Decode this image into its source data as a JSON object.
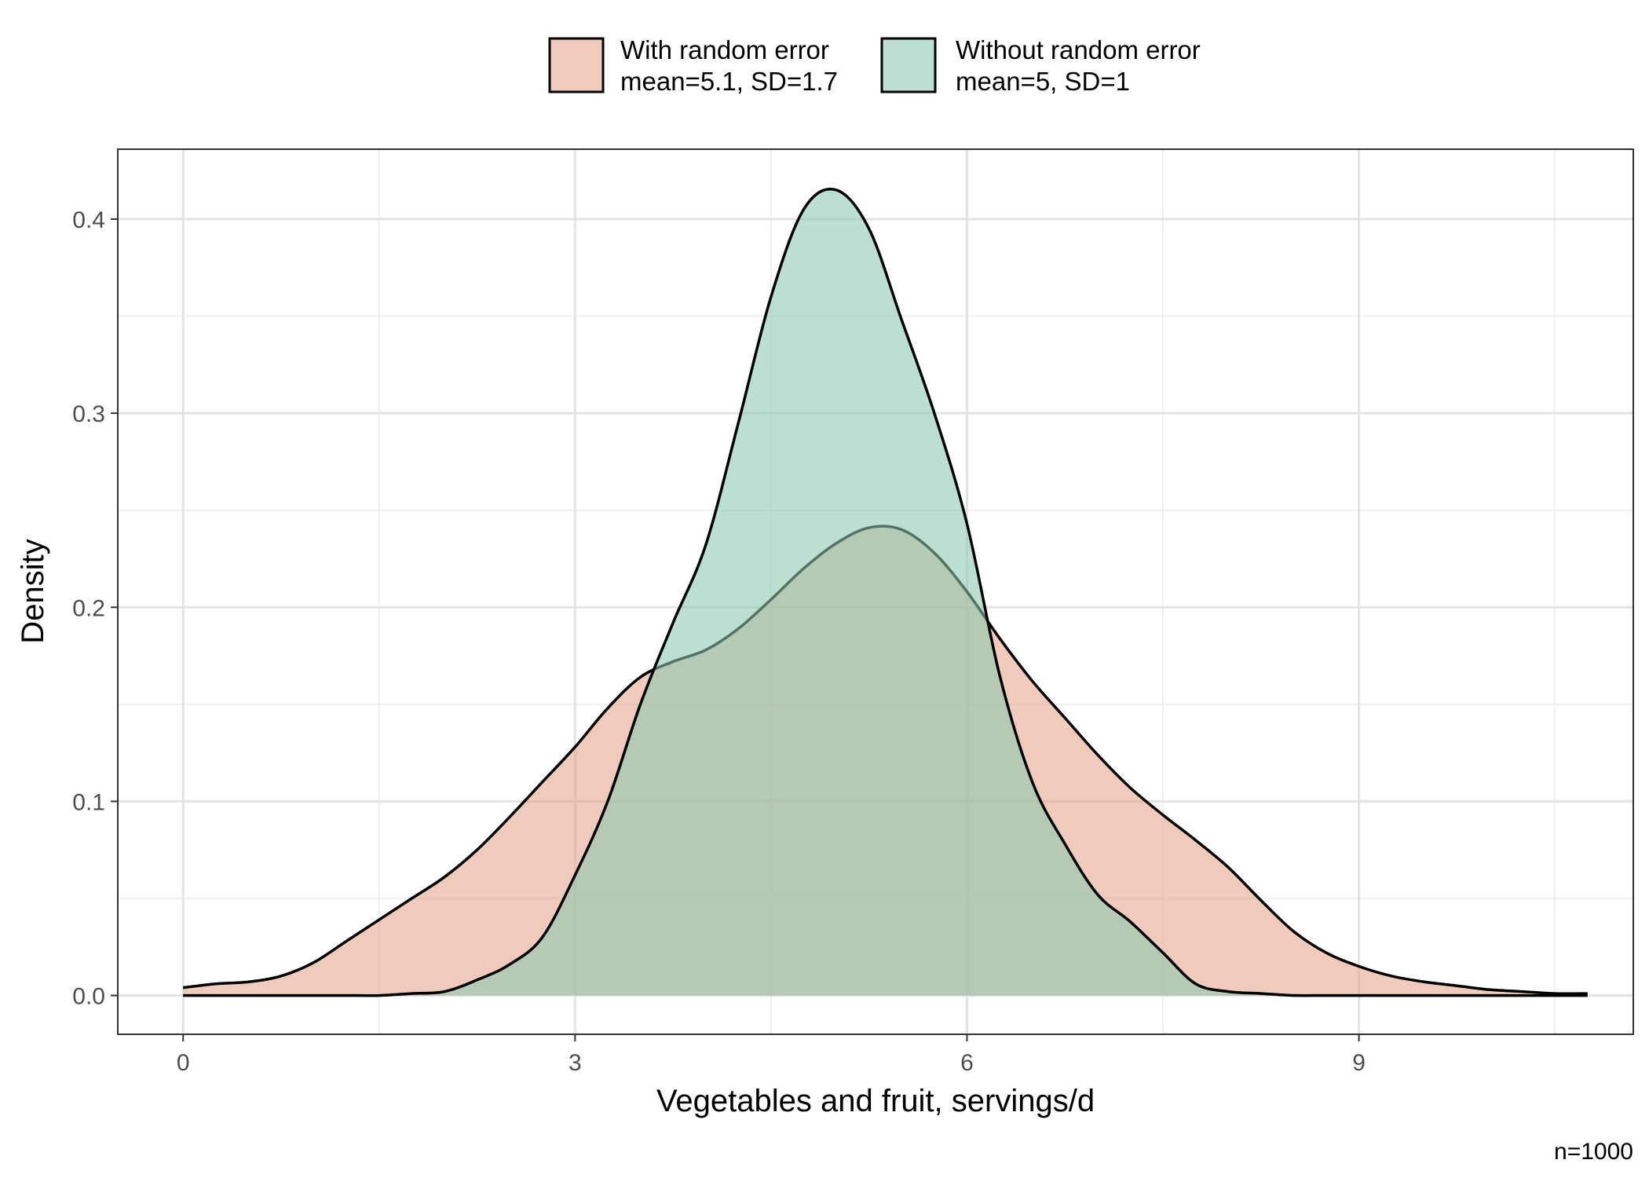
{
  "chart_data": {
    "type": "area",
    "subtype": "density",
    "title": "",
    "xlabel": "Vegetables and fruit, servings/d",
    "ylabel": "Density",
    "caption": "n=1000",
    "xlim": [
      -0.5,
      11.1
    ],
    "ylim": [
      -0.02,
      0.436
    ],
    "xticks": [
      0,
      3,
      6,
      9
    ],
    "yticks": [
      0.0,
      0.1,
      0.2,
      0.3,
      0.4
    ],
    "xtick_labels": [
      "0",
      "3",
      "6",
      "9"
    ],
    "ytick_labels": [
      "0.0",
      "0.1",
      "0.2",
      "0.3",
      "0.4"
    ],
    "grid": true,
    "legend_position": "top",
    "series": [
      {
        "name": "With random error",
        "label_line1": "With random error",
        "label_line2": "mean=5.1, SD=1.7",
        "color": "#e6a488",
        "fill_opacity": 0.58,
        "x": [
          0,
          0.25,
          0.5,
          0.75,
          1,
          1.25,
          1.5,
          1.75,
          2,
          2.25,
          2.5,
          2.75,
          3,
          3.25,
          3.5,
          3.75,
          4,
          4.25,
          4.5,
          4.75,
          5,
          5.25,
          5.5,
          5.75,
          6,
          6.25,
          6.5,
          6.75,
          7,
          7.25,
          7.5,
          7.75,
          8,
          8.25,
          8.5,
          8.75,
          9,
          9.25,
          9.5,
          9.75,
          10,
          10.25,
          10.5,
          10.75
        ],
        "y": [
          0.004,
          0.006,
          0.007,
          0.01,
          0.017,
          0.028,
          0.039,
          0.05,
          0.061,
          0.075,
          0.092,
          0.11,
          0.128,
          0.148,
          0.164,
          0.172,
          0.178,
          0.189,
          0.204,
          0.22,
          0.233,
          0.241,
          0.24,
          0.228,
          0.208,
          0.184,
          0.162,
          0.143,
          0.124,
          0.107,
          0.093,
          0.08,
          0.066,
          0.049,
          0.033,
          0.022,
          0.015,
          0.01,
          0.007,
          0.005,
          0.003,
          0.002,
          0.001,
          0.001
        ]
      },
      {
        "name": "Without random error",
        "label_line1": "Without random error",
        "label_line2": "mean=5, SD=1",
        "color": "#8cc8b1",
        "fill_opacity": 0.58,
        "x": [
          0,
          0.25,
          0.5,
          0.75,
          1,
          1.25,
          1.5,
          1.75,
          2,
          2.25,
          2.5,
          2.75,
          3,
          3.25,
          3.5,
          3.75,
          4,
          4.25,
          4.5,
          4.75,
          5,
          5.25,
          5.5,
          5.75,
          6,
          6.25,
          6.5,
          6.75,
          7,
          7.25,
          7.5,
          7.75,
          8,
          8.25,
          8.5,
          8.75,
          9,
          9.25,
          9.5,
          9.75,
          10,
          10.25,
          10.5,
          10.75
        ],
        "y": [
          0,
          0,
          0,
          0,
          0,
          0,
          0,
          0.001,
          0.002,
          0.008,
          0.016,
          0.03,
          0.062,
          0.1,
          0.15,
          0.192,
          0.232,
          0.295,
          0.36,
          0.405,
          0.415,
          0.395,
          0.348,
          0.3,
          0.243,
          0.165,
          0.11,
          0.078,
          0.052,
          0.038,
          0.022,
          0.006,
          0.002,
          0.001,
          0,
          0,
          0,
          0,
          0,
          0,
          0,
          0,
          0,
          0
        ]
      }
    ]
  }
}
